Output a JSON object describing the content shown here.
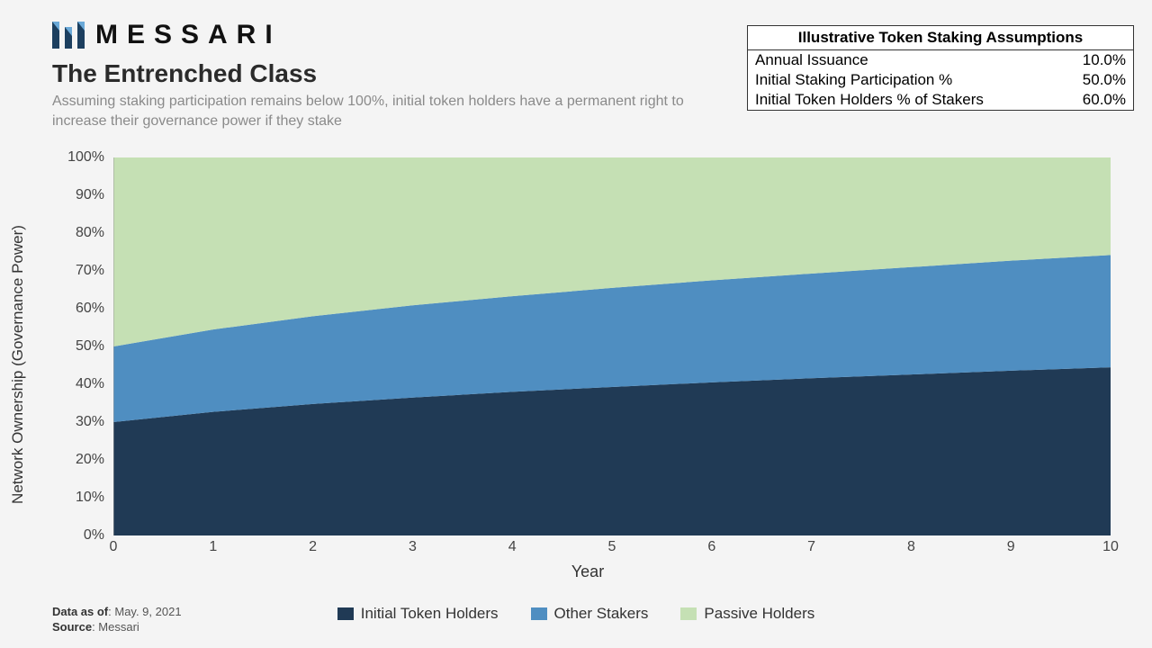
{
  "brand": {
    "name": "MESSARI"
  },
  "header": {
    "title": "The Entrenched Class",
    "subtitle": "Assuming staking participation remains below 100%, initial token holders have a permanent right to increase their governance power if they stake"
  },
  "assumptions": {
    "title": "Illustrative Token Staking Assumptions",
    "rows": [
      {
        "label": "Annual Issuance",
        "value": "10.0%"
      },
      {
        "label": "Initial Staking Participation %",
        "value": "50.0%"
      },
      {
        "label": "Initial Token Holders % of Stakers",
        "value": "60.0%"
      }
    ]
  },
  "chart": {
    "type": "stacked-area",
    "x_label": "Year",
    "y_label": "Network Ownership  (Governance Power)",
    "x_ticks": [
      0,
      1,
      2,
      3,
      4,
      5,
      6,
      7,
      8,
      9,
      10
    ],
    "y_ticks": [
      0,
      10,
      20,
      30,
      40,
      50,
      60,
      70,
      80,
      90,
      100
    ],
    "y_tick_suffix": "%",
    "xlim": [
      0,
      10
    ],
    "ylim": [
      0,
      100
    ],
    "background_color": "#f4f4f4",
    "grid_color": "#d6d6d6",
    "axis_color": "#9a9a9a",
    "series": [
      {
        "name": "Initial Token Holders",
        "color": "#203a55",
        "values": [
          30.0,
          32.7,
          34.8,
          36.5,
          38.0,
          39.3,
          40.5,
          41.6,
          42.6,
          43.6,
          44.5
        ]
      },
      {
        "name": "Other Stakers",
        "color": "#4f8ec1",
        "values": [
          20.0,
          21.8,
          23.2,
          24.4,
          25.3,
          26.2,
          27.0,
          27.7,
          28.4,
          29.1,
          29.7
        ]
      },
      {
        "name": "Passive Holders",
        "color": "#c5e0b4",
        "values": [
          50.0,
          45.5,
          42.0,
          39.1,
          36.7,
          34.5,
          32.5,
          30.7,
          29.0,
          27.3,
          25.8
        ]
      }
    ],
    "legend_labels": [
      "Initial Token Holders",
      "Other Stakers",
      "Passive Holders"
    ],
    "label_fontsize": 17,
    "tick_fontsize": 16
  },
  "footer": {
    "data_as_of_label": "Data as of",
    "data_as_of_value": ": May. 9, 2021",
    "source_label": "Source",
    "source_value": ": Messari"
  }
}
